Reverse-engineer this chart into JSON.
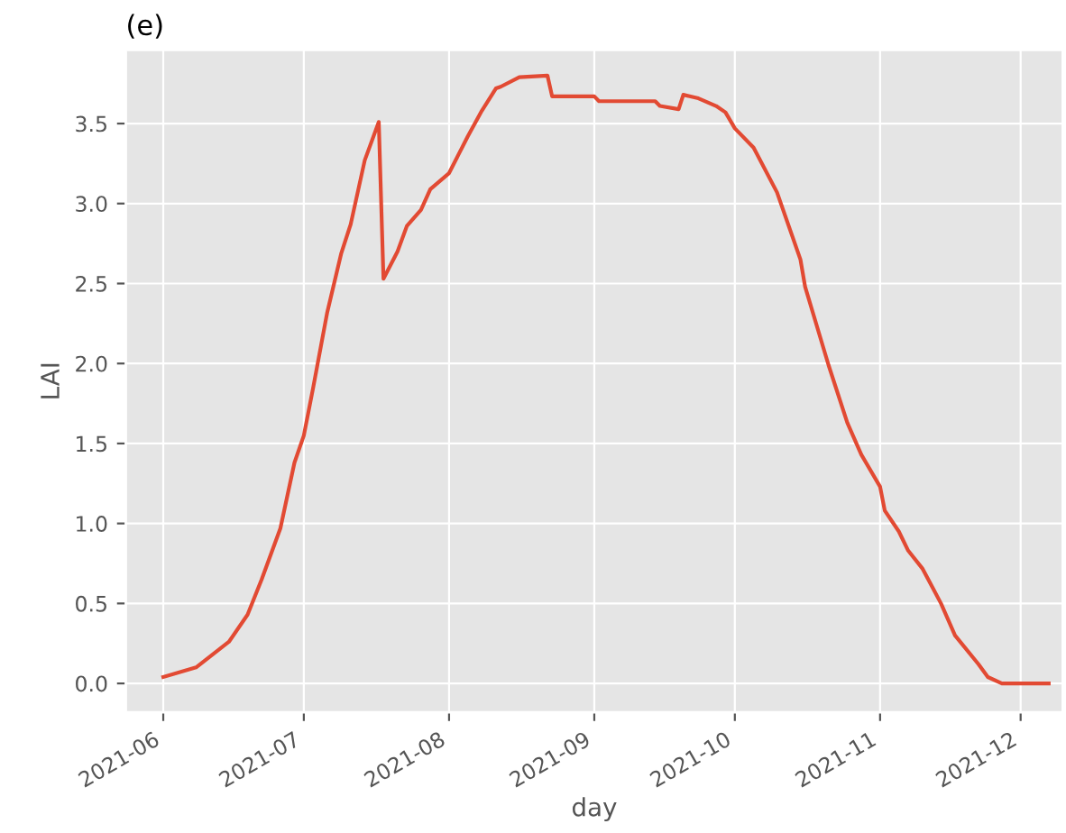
{
  "chart_data": {
    "type": "line",
    "title": "(e)",
    "xlabel": "day",
    "ylabel": "LAI",
    "x": [
      "2021-06-01",
      "2021-06-08",
      "2021-06-15",
      "2021-06-19",
      "2021-06-22",
      "2021-06-26",
      "2021-06-29",
      "2021-07-01",
      "2021-07-03",
      "2021-07-06",
      "2021-07-09",
      "2021-07-11",
      "2021-07-14",
      "2021-07-17",
      "2021-07-18",
      "2021-07-21",
      "2021-07-23",
      "2021-07-26",
      "2021-07-28",
      "2021-08-01",
      "2021-08-05",
      "2021-08-08",
      "2021-08-11",
      "2021-08-12",
      "2021-08-16",
      "2021-08-22",
      "2021-08-23",
      "2021-09-01",
      "2021-09-02",
      "2021-09-14",
      "2021-09-15",
      "2021-09-19",
      "2021-09-20",
      "2021-09-23",
      "2021-09-27",
      "2021-09-29",
      "2021-10-01",
      "2021-10-05",
      "2021-10-10",
      "2021-10-15",
      "2021-10-16",
      "2021-10-21",
      "2021-10-25",
      "2021-10-28",
      "2021-11-01",
      "2021-11-02",
      "2021-11-05",
      "2021-11-07",
      "2021-11-10",
      "2021-11-12",
      "2021-11-14",
      "2021-11-17",
      "2021-11-22",
      "2021-11-24",
      "2021-11-27",
      "2021-12-07"
    ],
    "series": [
      {
        "color": "#e24a33",
        "values": [
          0.04,
          0.1,
          0.26,
          0.43,
          0.65,
          0.97,
          1.38,
          1.55,
          1.85,
          2.32,
          2.69,
          2.87,
          3.27,
          3.51,
          2.53,
          2.7,
          2.86,
          2.96,
          3.09,
          3.19,
          3.42,
          3.58,
          3.72,
          3.73,
          3.79,
          3.8,
          3.67,
          3.67,
          3.64,
          3.64,
          3.61,
          3.59,
          3.68,
          3.66,
          3.61,
          3.57,
          3.47,
          3.35,
          3.07,
          2.65,
          2.48,
          1.99,
          1.63,
          1.43,
          1.23,
          1.08,
          0.95,
          0.83,
          0.72,
          0.61,
          0.5,
          0.3,
          0.12,
          0.04,
          0.0,
          0.0
        ]
      }
    ],
    "xlim": [
      "2021-05-24",
      "2021-12-10"
    ],
    "xticks": [
      {
        "value": "2021-06-01",
        "label": "2021-06"
      },
      {
        "value": "2021-07-01",
        "label": "2021-07"
      },
      {
        "value": "2021-08-01",
        "label": "2021-08"
      },
      {
        "value": "2021-09-01",
        "label": "2021-09"
      },
      {
        "value": "2021-10-01",
        "label": "2021-10"
      },
      {
        "value": "2021-11-01",
        "label": "2021-11"
      },
      {
        "value": "2021-12-01",
        "label": "2021-12"
      }
    ],
    "ylim": [
      -0.18,
      3.96
    ],
    "yticks": [
      {
        "value": 0,
        "label": "0.0"
      },
      {
        "value": 0.5,
        "label": "0.5"
      },
      {
        "value": 1,
        "label": "1.0"
      },
      {
        "value": 1.5,
        "label": "1.5"
      },
      {
        "value": 2,
        "label": "2.0"
      },
      {
        "value": 2.5,
        "label": "2.5"
      },
      {
        "value": 3,
        "label": "3.0"
      },
      {
        "value": 3.5,
        "label": "3.5"
      }
    ],
    "grid": true,
    "marker": "none",
    "line_style": "solid"
  }
}
